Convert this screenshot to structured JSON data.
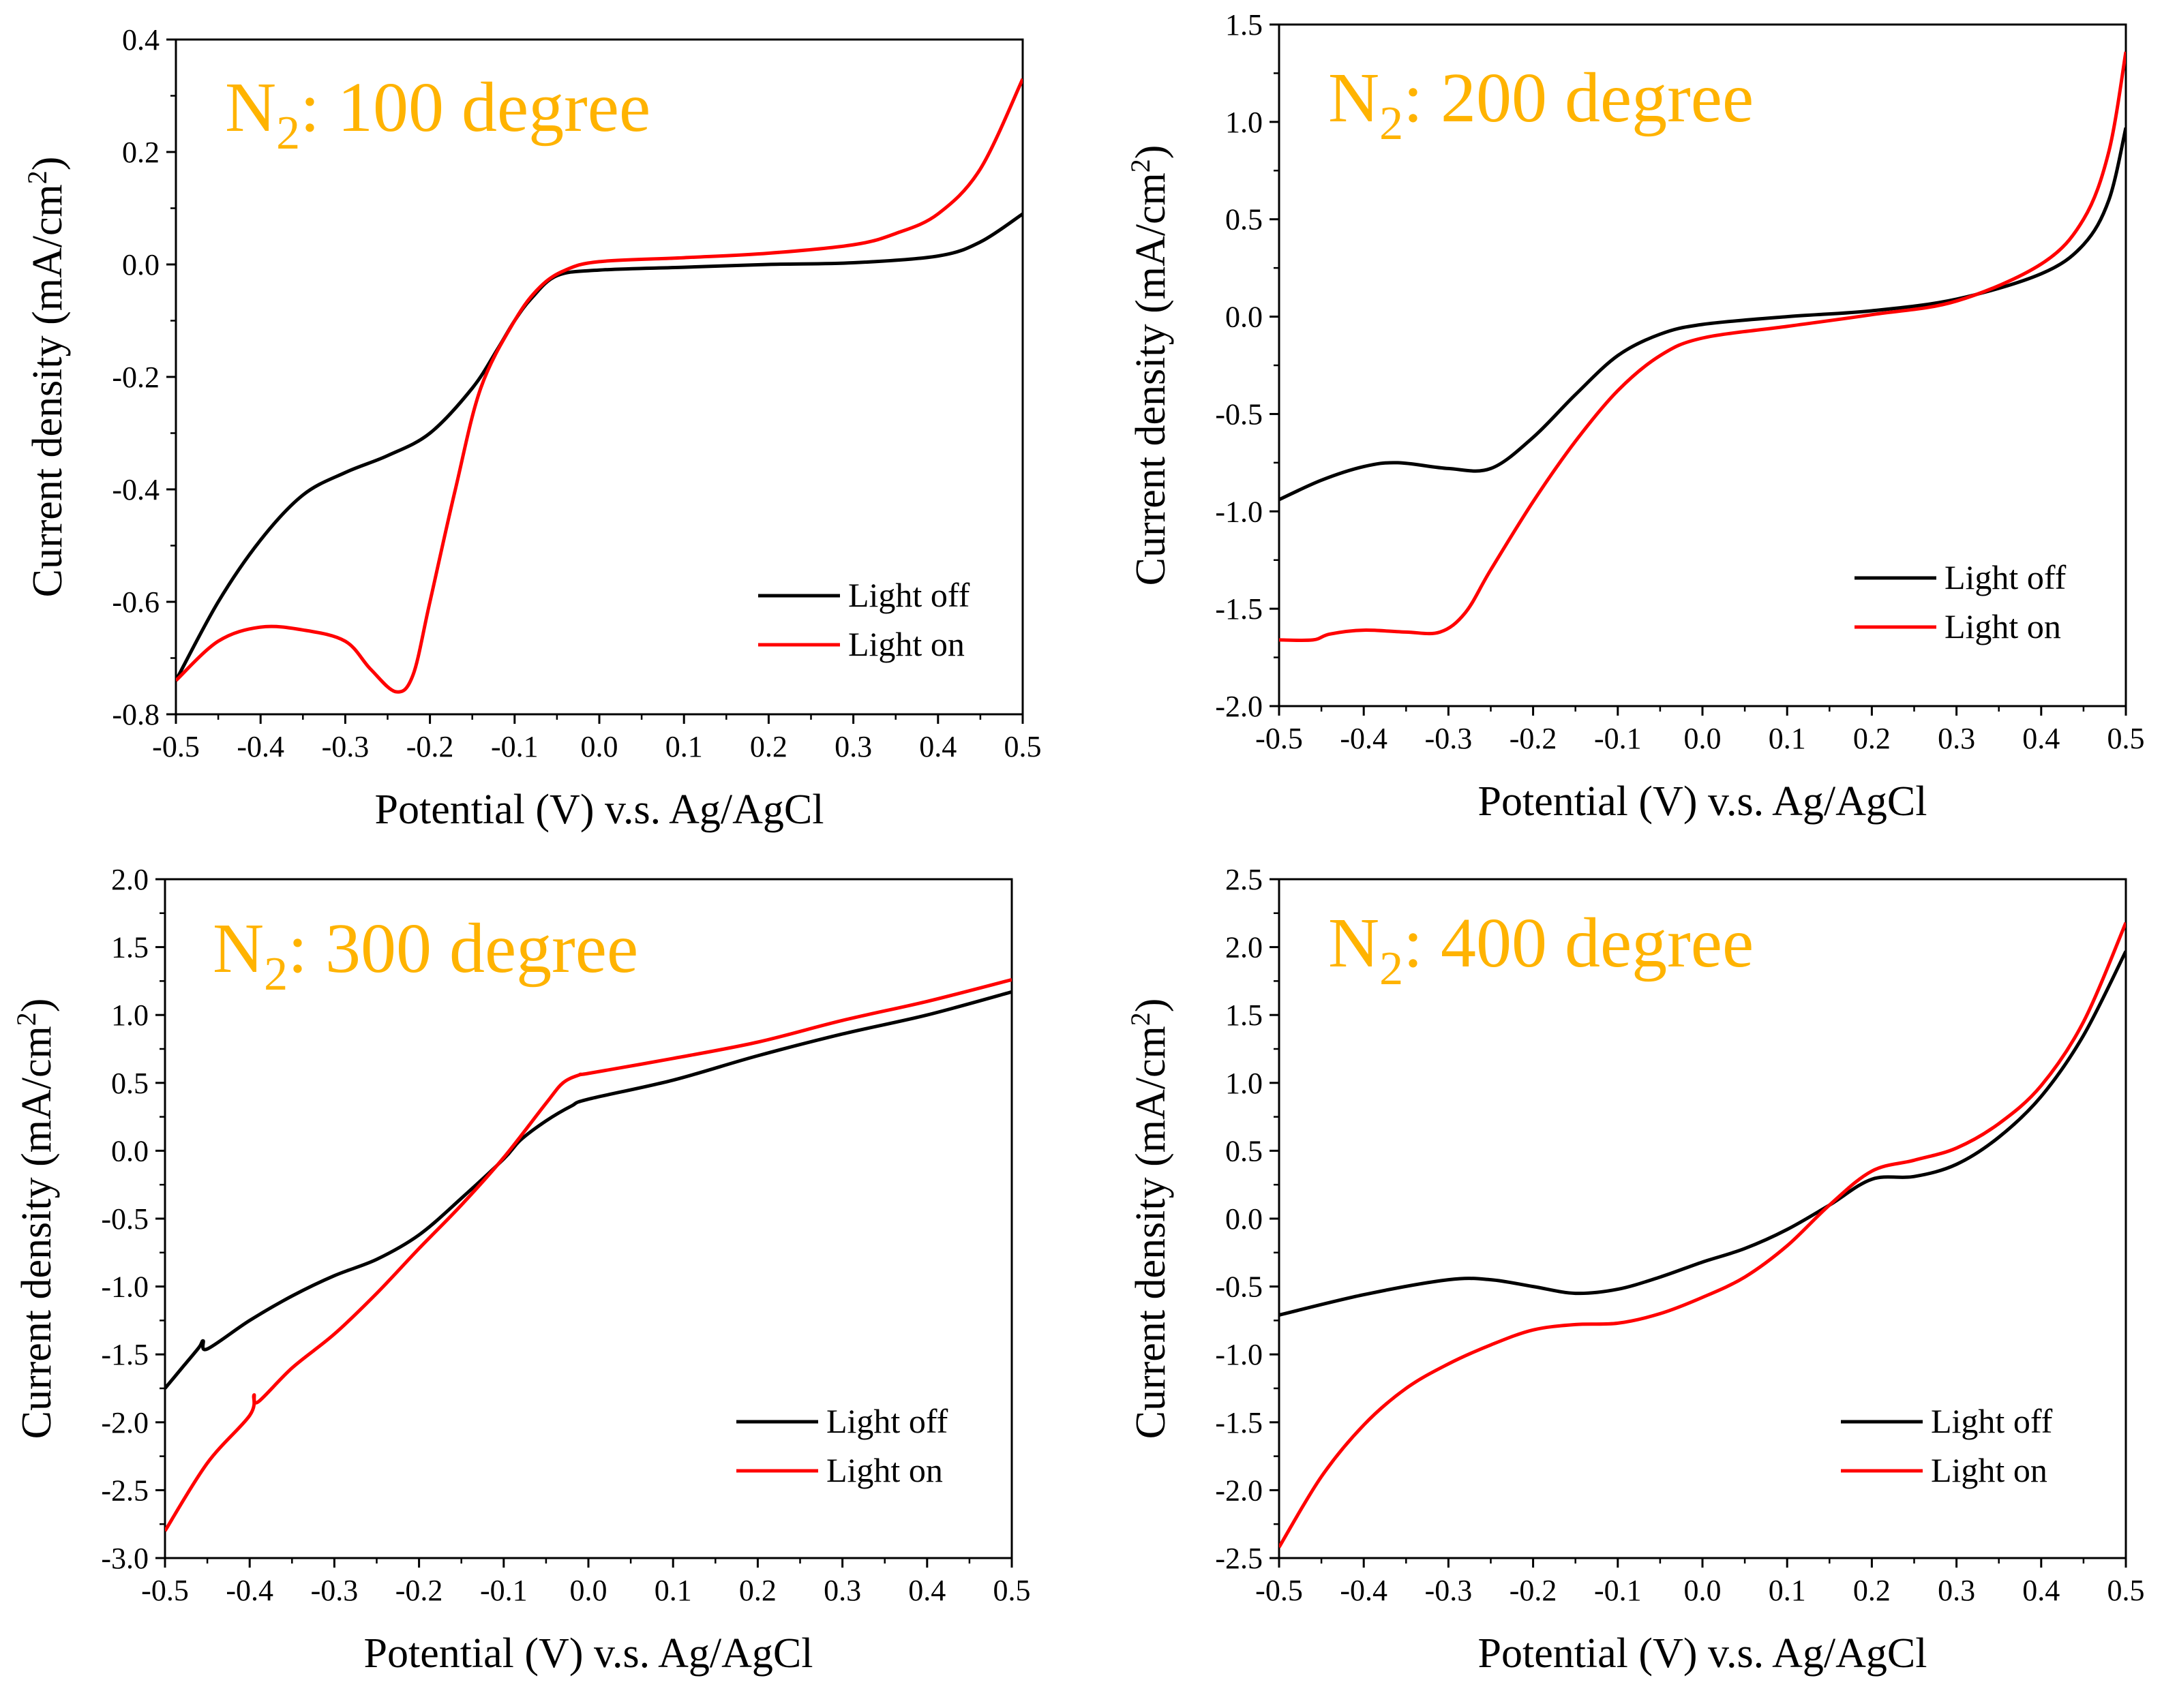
{
  "colors": {
    "light_off": "#000000",
    "light_on": "#ff0000",
    "title": "#ffb300",
    "axis": "#000000"
  },
  "chart_data": [
    {
      "type": "line",
      "title_main": "N",
      "title_sub": "2",
      "title_rest": ": 100 degree",
      "xlabel": "Potential (V) v.s. Ag/AgCl",
      "ylabel_main": "Current density (mA/cm",
      "ylabel_sup": "2",
      "ylabel_end": ")",
      "xlim": [
        -0.5,
        0.5
      ],
      "ylim": [
        -0.8,
        0.4
      ],
      "xticks": [
        "-0.5",
        "-0.4",
        "-0.3",
        "-0.2",
        "-0.1",
        "0.0",
        "0.1",
        "0.2",
        "0.3",
        "0.4",
        "0.5"
      ],
      "yticks": [
        "-0.8",
        "-0.6",
        "-0.4",
        "-0.2",
        "0.0",
        "0.2",
        "0.4"
      ],
      "legend": [
        "Light off",
        "Light on"
      ],
      "series": [
        {
          "name": "Light off",
          "x": [
            -0.5,
            -0.45,
            -0.4,
            -0.35,
            -0.3,
            -0.25,
            -0.2,
            -0.15,
            -0.12,
            -0.1,
            -0.08,
            -0.05,
            0.0,
            0.1,
            0.2,
            0.3,
            0.4,
            0.45,
            0.5
          ],
          "y": [
            -0.74,
            -0.6,
            -0.49,
            -0.41,
            -0.37,
            -0.34,
            -0.3,
            -0.22,
            -0.15,
            -0.1,
            -0.06,
            -0.02,
            -0.01,
            -0.005,
            0.0,
            0.003,
            0.015,
            0.04,
            0.09
          ]
        },
        {
          "name": "Light on",
          "x": [
            -0.5,
            -0.45,
            -0.4,
            -0.35,
            -0.3,
            -0.27,
            -0.24,
            -0.22,
            -0.2,
            -0.17,
            -0.14,
            -0.1,
            -0.07,
            -0.04,
            0.0,
            0.1,
            0.2,
            0.3,
            0.35,
            0.4,
            0.45,
            0.5
          ],
          "y": [
            -0.74,
            -0.67,
            -0.645,
            -0.65,
            -0.67,
            -0.72,
            -0.76,
            -0.73,
            -0.6,
            -0.4,
            -0.22,
            -0.1,
            -0.04,
            -0.01,
            0.005,
            0.012,
            0.02,
            0.035,
            0.055,
            0.09,
            0.17,
            0.33
          ]
        }
      ]
    },
    {
      "type": "line",
      "title_main": "N",
      "title_sub": "2",
      "title_rest": ": 200 degree",
      "xlabel": "Potential (V) v.s. Ag/AgCl",
      "ylabel_main": "Current density (mA/cm",
      "ylabel_sup": "2",
      "ylabel_end": ")",
      "xlim": [
        -0.5,
        0.5
      ],
      "ylim": [
        -2.0,
        1.5
      ],
      "xticks": [
        "-0.5",
        "-0.4",
        "-0.3",
        "-0.2",
        "-0.1",
        "0.0",
        "0.1",
        "0.2",
        "0.3",
        "0.4",
        "0.5"
      ],
      "yticks": [
        "-2.0",
        "-1.5",
        "-1.0",
        "-0.5",
        "0.0",
        "0.5",
        "1.0",
        "1.5"
      ],
      "legend": [
        "Light off",
        "Light on"
      ],
      "series": [
        {
          "name": "Light off",
          "x": [
            -0.5,
            -0.45,
            -0.4,
            -0.36,
            -0.3,
            -0.25,
            -0.2,
            -0.15,
            -0.1,
            -0.05,
            0.0,
            0.1,
            0.2,
            0.3,
            0.4,
            0.45,
            0.48,
            0.5
          ],
          "y": [
            -0.94,
            -0.84,
            -0.77,
            -0.75,
            -0.78,
            -0.78,
            -0.62,
            -0.4,
            -0.2,
            -0.09,
            -0.04,
            0.0,
            0.03,
            0.09,
            0.22,
            0.37,
            0.6,
            0.97
          ]
        },
        {
          "name": "Light on",
          "x": [
            -0.5,
            -0.46,
            -0.44,
            -0.4,
            -0.35,
            -0.31,
            -0.28,
            -0.25,
            -0.2,
            -0.15,
            -0.1,
            -0.05,
            0.0,
            0.1,
            0.2,
            0.3,
            0.4,
            0.45,
            0.48,
            0.5
          ],
          "y": [
            -1.66,
            -1.66,
            -1.63,
            -1.61,
            -1.62,
            -1.62,
            -1.52,
            -1.3,
            -0.95,
            -0.64,
            -0.38,
            -0.2,
            -0.11,
            -0.05,
            0.01,
            0.08,
            0.27,
            0.5,
            0.85,
            1.36
          ]
        }
      ]
    },
    {
      "type": "line",
      "title_main": "N",
      "title_sub": "2",
      "title_rest": ": 300 degree",
      "xlabel": "Potential (V) v.s. Ag/AgCl",
      "ylabel_main": "Current density (mA/cm",
      "ylabel_sup": "2",
      "ylabel_end": ")",
      "xlim": [
        -0.5,
        0.5
      ],
      "ylim": [
        -3.0,
        2.0
      ],
      "xticks": [
        "-0.5",
        "-0.4",
        "-0.3",
        "-0.2",
        "-0.1",
        "0.0",
        "0.1",
        "0.2",
        "0.3",
        "0.4",
        "0.5"
      ],
      "yticks": [
        "-3.0",
        "-2.5",
        "-2.0",
        "-1.5",
        "-1.0",
        "-0.5",
        "0.0",
        "0.5",
        "1.0",
        "1.5",
        "2.0"
      ],
      "legend": [
        "Light off",
        "Light on"
      ],
      "series": [
        {
          "name": "Light off",
          "x": [
            -0.5,
            -0.48,
            -0.46,
            -0.455,
            -0.45,
            -0.4,
            -0.35,
            -0.3,
            -0.25,
            -0.2,
            -0.15,
            -0.1,
            -0.08,
            -0.05,
            -0.02,
            0.0,
            0.1,
            0.2,
            0.3,
            0.4,
            0.5
          ],
          "y": [
            -1.75,
            -1.6,
            -1.45,
            -1.4,
            -1.46,
            -1.25,
            -1.07,
            -0.92,
            -0.8,
            -0.62,
            -0.35,
            -0.06,
            0.08,
            0.22,
            0.33,
            0.38,
            0.52,
            0.7,
            0.86,
            1.0,
            1.17
          ]
        },
        {
          "name": "Light on",
          "x": [
            -0.5,
            -0.45,
            -0.4,
            -0.395,
            -0.39,
            -0.35,
            -0.3,
            -0.25,
            -0.2,
            -0.15,
            -0.1,
            -0.05,
            -0.03,
            -0.01,
            0.0,
            0.1,
            0.2,
            0.3,
            0.4,
            0.5
          ],
          "y": [
            -2.8,
            -2.3,
            -1.95,
            -1.8,
            -1.85,
            -1.6,
            -1.35,
            -1.05,
            -0.72,
            -0.4,
            -0.05,
            0.35,
            0.5,
            0.56,
            0.57,
            0.68,
            0.8,
            0.96,
            1.1,
            1.26
          ]
        }
      ]
    },
    {
      "type": "line",
      "title_main": "N",
      "title_sub": "2",
      "title_rest": ": 400 degree",
      "xlabel": "Potential (V) v.s. Ag/AgCl",
      "ylabel_main": "Current density (mA/cm",
      "ylabel_sup": "2",
      "ylabel_end": ")",
      "xlim": [
        -0.5,
        0.5
      ],
      "ylim": [
        -2.5,
        2.5
      ],
      "xticks": [
        "-0.5",
        "-0.4",
        "-0.3",
        "-0.2",
        "-0.1",
        "0.0",
        "0.1",
        "0.2",
        "0.3",
        "0.4",
        "0.5"
      ],
      "yticks": [
        "-2.5",
        "-2.0",
        "-1.5",
        "-1.0",
        "-0.5",
        "0.0",
        "0.5",
        "1.0",
        "1.5",
        "2.0",
        "2.5"
      ],
      "legend": [
        "Light off",
        "Light on"
      ],
      "series": [
        {
          "name": "Light off",
          "x": [
            -0.5,
            -0.4,
            -0.3,
            -0.25,
            -0.2,
            -0.15,
            -0.1,
            -0.05,
            0.0,
            0.05,
            0.1,
            0.15,
            0.2,
            0.25,
            0.3,
            0.35,
            0.4,
            0.45,
            0.5
          ],
          "y": [
            -0.71,
            -0.56,
            -0.45,
            -0.45,
            -0.5,
            -0.55,
            -0.52,
            -0.43,
            -0.32,
            -0.22,
            -0.08,
            0.1,
            0.29,
            0.31,
            0.4,
            0.6,
            0.9,
            1.35,
            1.97
          ]
        },
        {
          "name": "Light on",
          "x": [
            -0.5,
            -0.45,
            -0.4,
            -0.35,
            -0.3,
            -0.25,
            -0.2,
            -0.15,
            -0.1,
            -0.05,
            0.0,
            0.05,
            0.1,
            0.15,
            0.2,
            0.25,
            0.3,
            0.35,
            0.4,
            0.45,
            0.5
          ],
          "y": [
            -2.42,
            -1.9,
            -1.52,
            -1.25,
            -1.07,
            -0.93,
            -0.82,
            -0.78,
            -0.77,
            -0.7,
            -0.58,
            -0.43,
            -0.2,
            0.1,
            0.35,
            0.43,
            0.52,
            0.7,
            0.98,
            1.45,
            2.18
          ]
        }
      ]
    }
  ]
}
